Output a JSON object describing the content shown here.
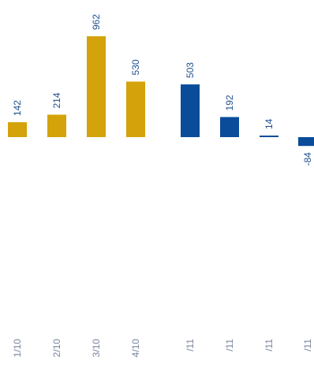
{
  "chart_data": {
    "type": "bar",
    "categories": [
      "1/10",
      "2/10",
      "3/10",
      "4/10",
      "/11",
      "/11",
      "/11",
      "/11"
    ],
    "values": [
      142,
      214,
      962,
      530,
      503,
      192,
      14,
      -84
    ],
    "bar_colors": [
      "#d4a20a",
      "#d4a20a",
      "#d4a20a",
      "#d4a20a",
      "#0a4c9a",
      "#0a4c9a",
      "#0a4c9a",
      "#0a4c9a"
    ],
    "label_color": "#1f4f8f",
    "tick_color": "#7a86a0",
    "title": "",
    "xlabel": "",
    "ylabel": "",
    "ylim": [
      -84,
      962
    ],
    "grid": false,
    "legend": "none"
  }
}
